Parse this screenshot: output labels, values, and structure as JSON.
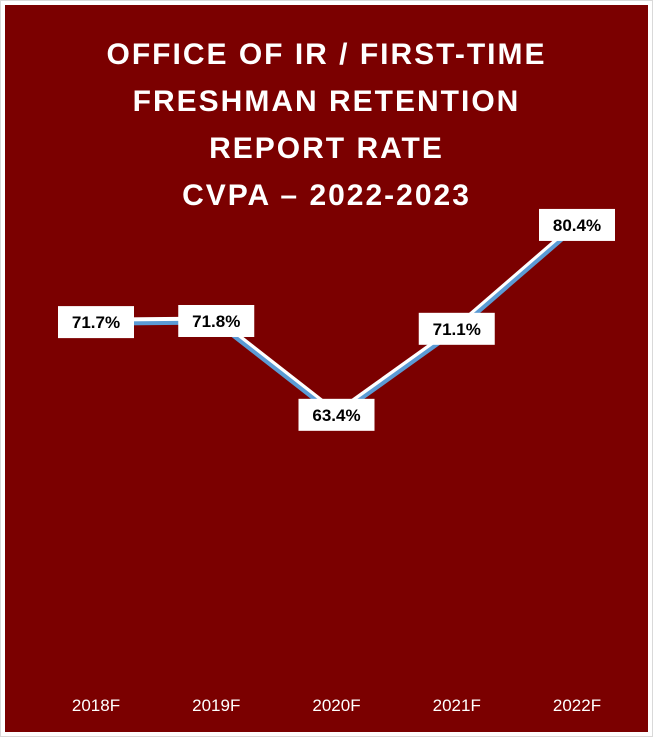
{
  "chart_data": {
    "type": "line",
    "title_lines": [
      "OFFICE OF IR / FIRST-TIME",
      "FRESHMAN RETENTION",
      "REPORT RATE",
      "CVPA – 2022-2023"
    ],
    "categories": [
      "2018F",
      "2019F",
      "2020F",
      "2021F",
      "2022F"
    ],
    "series": [
      {
        "values": [
          71.7,
          71.8,
          63.4,
          71.1,
          80.4
        ],
        "labels": [
          "71.7%",
          "71.8%",
          "63.4%",
          "71.1%",
          "80.4%"
        ]
      }
    ],
    "ylim": [
      0,
      100
    ],
    "grid": false,
    "legend": "none",
    "colors": {
      "background": "#7b0000",
      "line": "#5b9bd5",
      "line_highlight": "#ffffff",
      "label_box": "#ffffff",
      "text": "#ffffff"
    }
  }
}
